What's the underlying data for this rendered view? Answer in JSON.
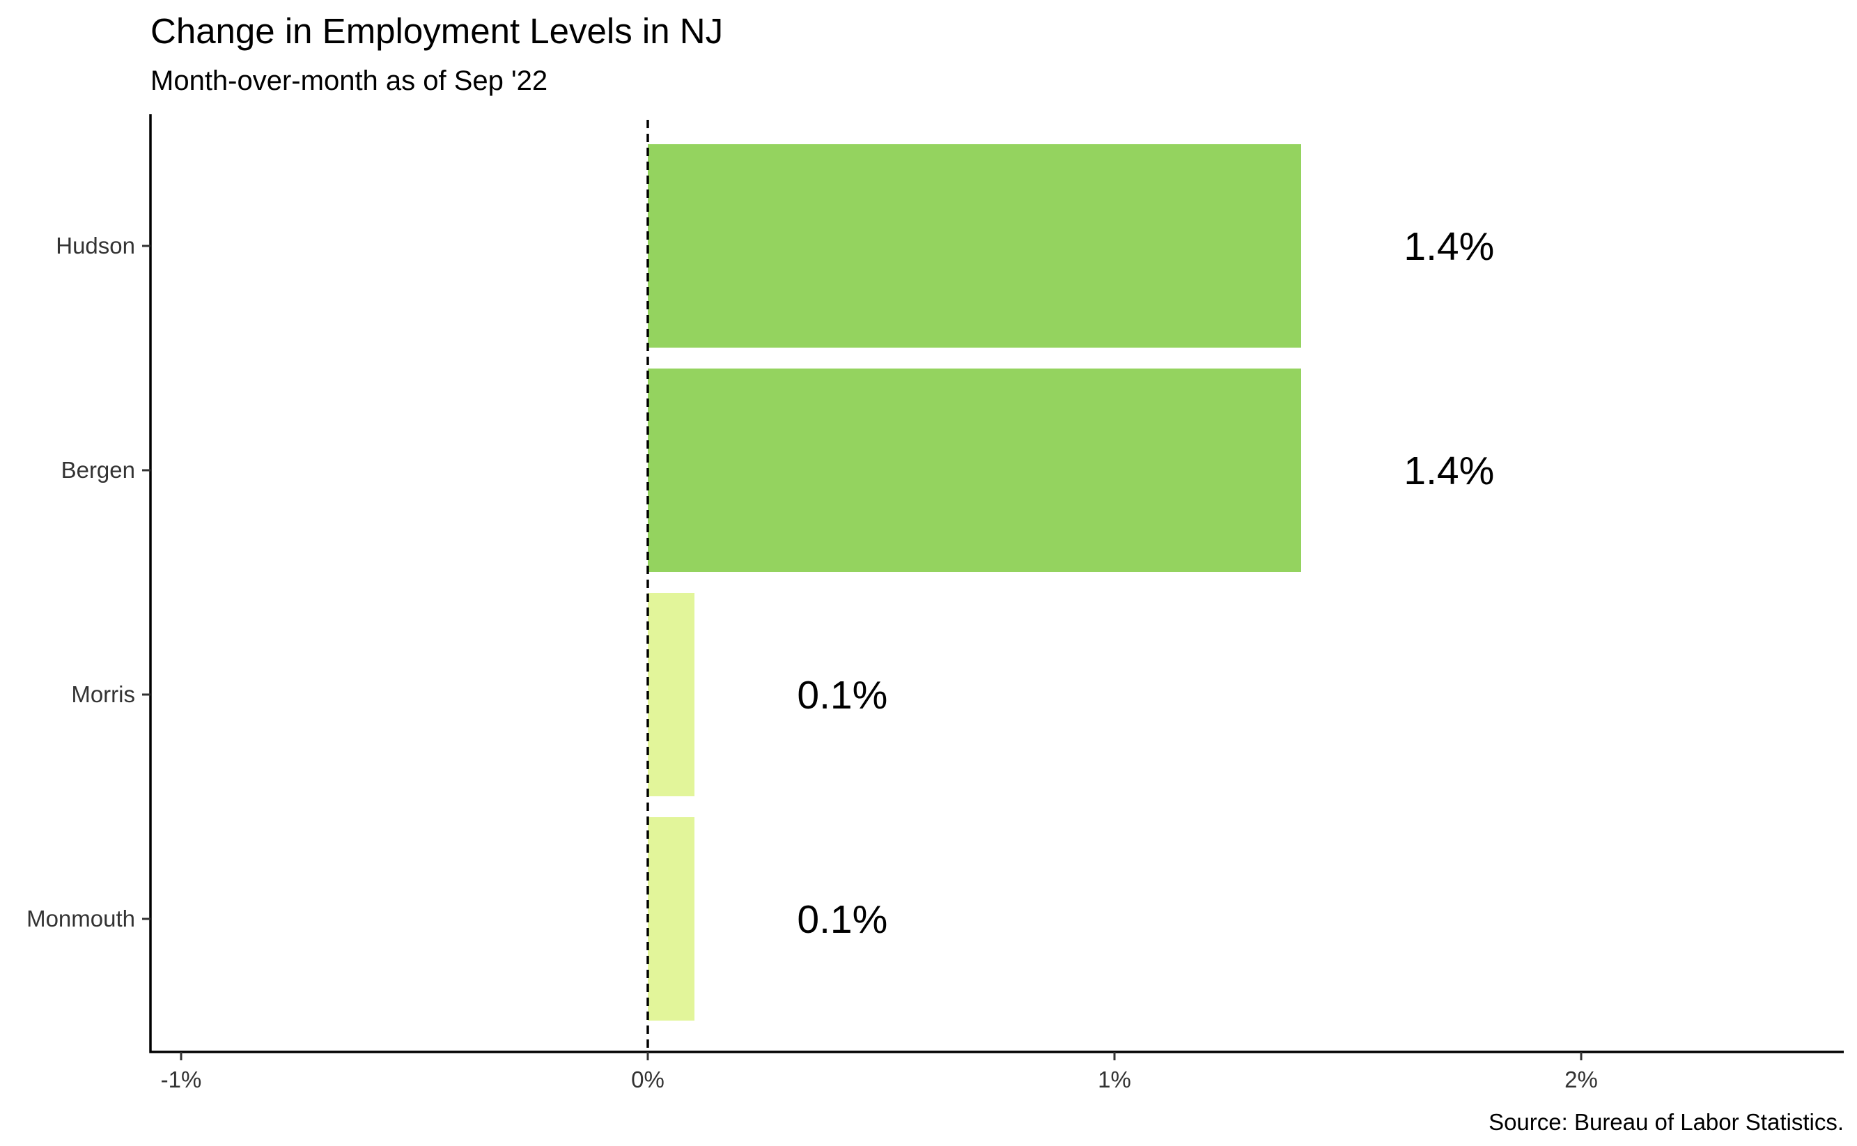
{
  "chart_data": {
    "type": "bar",
    "orientation": "horizontal",
    "title": "Change in Employment Levels in NJ",
    "subtitle": "Month-over-month as of Sep '22",
    "caption": "Source: Bureau of Labor Statistics.",
    "categories": [
      "Hudson",
      "Bergen",
      "Morris",
      "Monmouth"
    ],
    "values": [
      1.4,
      1.4,
      0.1,
      0.1
    ],
    "data_labels": [
      "1.4%",
      "1.4%",
      "0.1%",
      "0.1%"
    ],
    "bar_colors": [
      "#94d35f",
      "#94d35f",
      "#e2f59a",
      "#e2f59a"
    ],
    "x_ticks": [
      -1,
      0,
      1,
      2
    ],
    "x_tick_labels": [
      "-1%",
      "0%",
      "1%",
      "2%"
    ],
    "xlim": [
      -1.05,
      2.55
    ],
    "reference_line": {
      "x": 0,
      "style": "dashed",
      "color": "#000000"
    },
    "xlabel": "",
    "ylabel": "",
    "grid": false,
    "legend": "none"
  }
}
